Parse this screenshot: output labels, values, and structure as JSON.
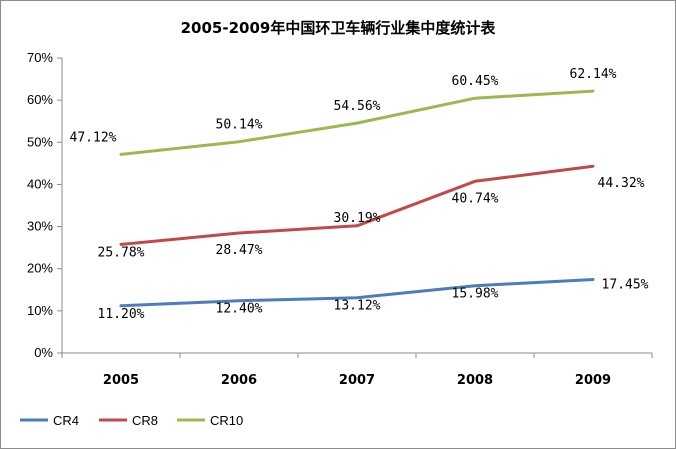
{
  "chart_data": {
    "type": "line",
    "title": "2005-2009年中国环卫车辆行业集中度统计表",
    "categories": [
      "2005",
      "2006",
      "2007",
      "2008",
      "2009"
    ],
    "ylim": [
      0,
      70
    ],
    "yticks": [
      "0%",
      "10%",
      "20%",
      "30%",
      "40%",
      "50%",
      "60%",
      "70%"
    ],
    "grid": false,
    "legend_position": "bottom-left",
    "series": [
      {
        "name": "CR4",
        "color": "#4a7ebb",
        "values": [
          11.2,
          12.4,
          13.12,
          15.98,
          17.45
        ],
        "labels": [
          "11.20%",
          "12.40%",
          "13.12%",
          "15.98%",
          "17.45%"
        ]
      },
      {
        "name": "CR8",
        "color": "#be4b48",
        "values": [
          25.78,
          28.47,
          30.19,
          40.74,
          44.32
        ],
        "labels": [
          "25.78%",
          "28.47%",
          "30.19%",
          "40.74%",
          "44.32%"
        ]
      },
      {
        "name": "CR10",
        "color": "#98b954",
        "values": [
          47.12,
          50.14,
          54.56,
          60.45,
          62.14
        ],
        "labels": [
          "47.12%",
          "50.14%",
          "54.56%",
          "60.45%",
          "62.14%"
        ]
      }
    ]
  }
}
